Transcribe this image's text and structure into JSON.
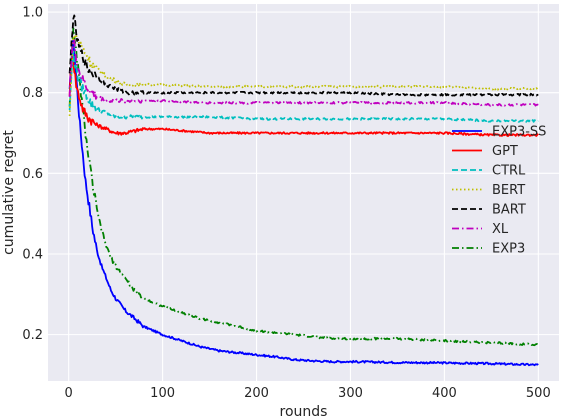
{
  "chart_data": {
    "type": "line",
    "title": "",
    "xlabel": "rounds",
    "ylabel": "cumulative regret",
    "xlim": [
      -22,
      522
    ],
    "ylim": [
      0.085,
      1.02
    ],
    "xticks": [
      0,
      100,
      200,
      300,
      400,
      500
    ],
    "yticks": [
      0.2,
      0.4,
      0.6,
      0.8,
      1.0
    ],
    "xtick_labels": [
      "0",
      "100",
      "200",
      "300",
      "400",
      "500"
    ],
    "ytick_labels": [
      "0.2",
      "0.4",
      "0.6",
      "0.8",
      "1.0"
    ],
    "grid": true,
    "legend_position": "right",
    "background": "#eaeaf2",
    "series": [
      {
        "name": "EXP3-SS",
        "color": "#0000ff",
        "dash": "solid",
        "x": [
          1,
          2,
          3,
          4,
          5,
          6,
          8,
          10,
          12,
          15,
          18,
          20,
          25,
          30,
          35,
          40,
          45,
          50,
          60,
          70,
          80,
          90,
          100,
          120,
          140,
          160,
          180,
          200,
          220,
          240,
          260,
          280,
          300,
          350,
          400,
          450,
          500
        ],
        "y": [
          0.8,
          0.84,
          0.87,
          0.9,
          0.92,
          0.9,
          0.84,
          0.78,
          0.72,
          0.65,
          0.58,
          0.55,
          0.47,
          0.41,
          0.37,
          0.34,
          0.31,
          0.29,
          0.26,
          0.24,
          0.22,
          0.21,
          0.2,
          0.185,
          0.17,
          0.16,
          0.155,
          0.15,
          0.145,
          0.138,
          0.135,
          0.133,
          0.133,
          0.131,
          0.13,
          0.128,
          0.125
        ]
      },
      {
        "name": "GPT",
        "color": "#ff0000",
        "dash": "solid",
        "x": [
          1,
          2,
          3,
          4,
          5,
          6,
          8,
          10,
          15,
          20,
          25,
          30,
          40,
          50,
          60,
          80,
          100,
          150,
          200,
          250,
          300,
          350,
          400,
          450,
          500
        ],
        "y": [
          0.8,
          0.84,
          0.87,
          0.9,
          0.88,
          0.86,
          0.82,
          0.8,
          0.76,
          0.74,
          0.73,
          0.72,
          0.71,
          0.7,
          0.7,
          0.71,
          0.71,
          0.7,
          0.7,
          0.7,
          0.7,
          0.7,
          0.7,
          0.695,
          0.695
        ]
      },
      {
        "name": "CTRL",
        "color": "#00bfbf",
        "dash": "dashed",
        "x": [
          1,
          2,
          3,
          4,
          5,
          6,
          8,
          10,
          15,
          20,
          25,
          30,
          40,
          50,
          60,
          80,
          100,
          150,
          200,
          250,
          300,
          350,
          400,
          450,
          500
        ],
        "y": [
          0.76,
          0.8,
          0.85,
          0.88,
          0.9,
          0.88,
          0.86,
          0.84,
          0.81,
          0.79,
          0.77,
          0.76,
          0.75,
          0.74,
          0.74,
          0.74,
          0.74,
          0.74,
          0.735,
          0.735,
          0.735,
          0.735,
          0.735,
          0.73,
          0.73
        ]
      },
      {
        "name": "BERT",
        "color": "#bfbf00",
        "dash": "dotted",
        "x": [
          1,
          2,
          3,
          4,
          5,
          6,
          8,
          10,
          15,
          20,
          25,
          30,
          40,
          50,
          60,
          80,
          100,
          150,
          200,
          250,
          300,
          350,
          400,
          450,
          500
        ],
        "y": [
          0.74,
          0.8,
          0.86,
          0.9,
          0.93,
          0.94,
          0.94,
          0.93,
          0.91,
          0.89,
          0.87,
          0.86,
          0.84,
          0.83,
          0.82,
          0.82,
          0.82,
          0.815,
          0.815,
          0.815,
          0.815,
          0.815,
          0.815,
          0.81,
          0.81
        ]
      },
      {
        "name": "BART",
        "color": "#000000",
        "dash": "dashed",
        "x": [
          1,
          2,
          3,
          4,
          5,
          6,
          8,
          10,
          15,
          20,
          25,
          30,
          40,
          50,
          60,
          80,
          100,
          150,
          200,
          250,
          300,
          350,
          400,
          450,
          500
        ],
        "y": [
          0.84,
          0.88,
          0.92,
          0.96,
          0.99,
          0.98,
          0.95,
          0.92,
          0.89,
          0.86,
          0.85,
          0.84,
          0.82,
          0.81,
          0.8,
          0.8,
          0.8,
          0.8,
          0.8,
          0.8,
          0.8,
          0.795,
          0.795,
          0.795,
          0.795
        ]
      },
      {
        "name": "XL",
        "color": "#bf00bf",
        "dash": "dashdot",
        "x": [
          1,
          2,
          3,
          4,
          5,
          6,
          8,
          10,
          15,
          20,
          25,
          30,
          40,
          50,
          60,
          80,
          100,
          150,
          200,
          250,
          300,
          350,
          400,
          450,
          500
        ],
        "y": [
          0.8,
          0.85,
          0.88,
          0.91,
          0.93,
          0.92,
          0.89,
          0.86,
          0.83,
          0.81,
          0.8,
          0.79,
          0.78,
          0.78,
          0.78,
          0.78,
          0.78,
          0.775,
          0.775,
          0.775,
          0.775,
          0.775,
          0.775,
          0.77,
          0.77
        ]
      },
      {
        "name": "EXP3",
        "color": "#008000",
        "dash": "dashdot",
        "x": [
          1,
          2,
          3,
          4,
          5,
          6,
          8,
          10,
          12,
          15,
          18,
          20,
          25,
          30,
          35,
          40,
          45,
          50,
          60,
          70,
          80,
          90,
          100,
          120,
          140,
          160,
          180,
          200,
          220,
          240,
          260,
          280,
          300,
          350,
          400,
          450,
          500
        ],
        "y": [
          0.77,
          0.83,
          0.89,
          0.93,
          0.95,
          0.93,
          0.9,
          0.86,
          0.82,
          0.76,
          0.7,
          0.66,
          0.58,
          0.51,
          0.46,
          0.42,
          0.39,
          0.37,
          0.34,
          0.31,
          0.29,
          0.28,
          0.27,
          0.255,
          0.24,
          0.23,
          0.22,
          0.21,
          0.205,
          0.2,
          0.195,
          0.19,
          0.19,
          0.19,
          0.185,
          0.18,
          0.175
        ]
      }
    ]
  }
}
